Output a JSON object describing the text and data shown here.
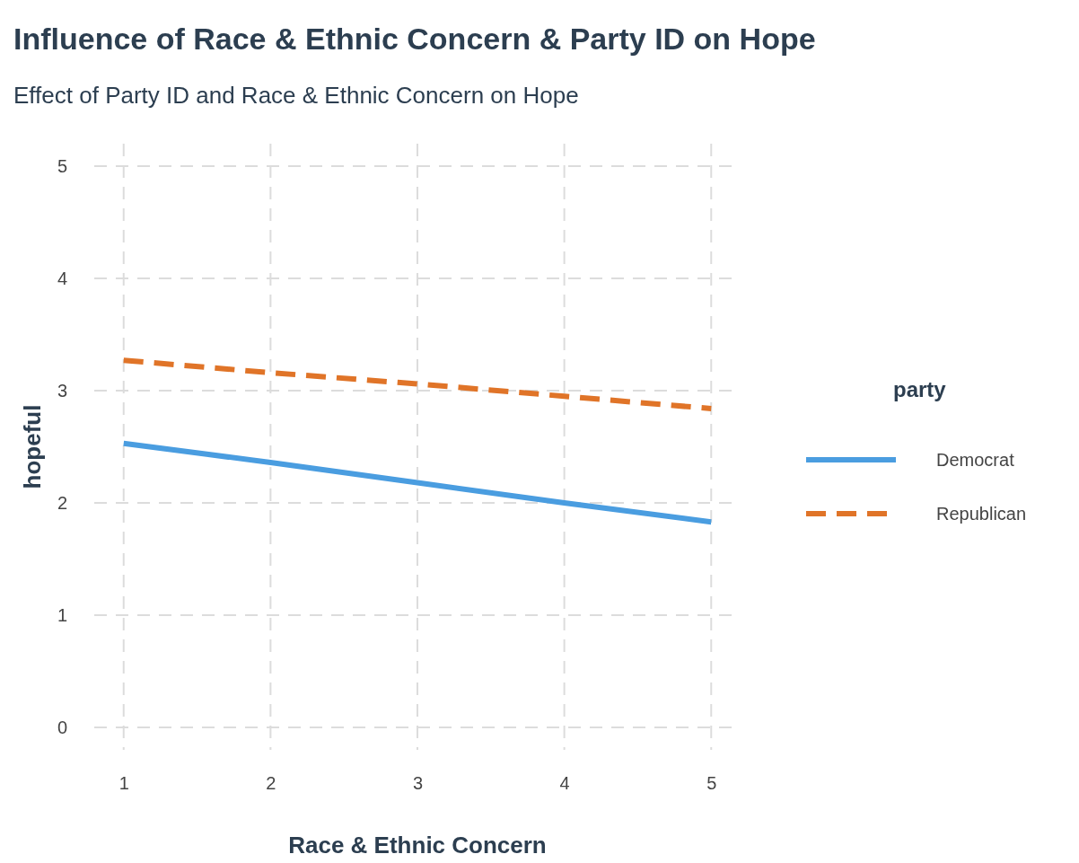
{
  "chart_data": {
    "type": "line",
    "title": "Influence of Race & Ethnic Concern & Party ID on Hope",
    "subtitle": "Effect of Party ID and Race & Ethnic Concern on Hope",
    "xlabel": "Race & Ethnic Concern",
    "ylabel": "hopeful",
    "legend_title": "party",
    "x": [
      1,
      2,
      3,
      4,
      5
    ],
    "series": [
      {
        "name": "Democrat",
        "color": "#4a9de0",
        "values": [
          2.53,
          2.36,
          2.18,
          2.0,
          1.83
        ],
        "line_style": "solid"
      },
      {
        "name": "Republican",
        "color": "#e07428",
        "values": [
          3.27,
          3.16,
          3.06,
          2.95,
          2.84
        ],
        "line_style": "dashed"
      }
    ],
    "xlim": [
      0.8,
      5.2
    ],
    "ylim": [
      -0.2,
      5.2
    ],
    "xticks": [
      1,
      2,
      3,
      4,
      5
    ],
    "yticks": [
      0,
      1,
      2,
      3,
      4,
      5
    ],
    "grid": true,
    "legend": "right",
    "marker": "none"
  }
}
